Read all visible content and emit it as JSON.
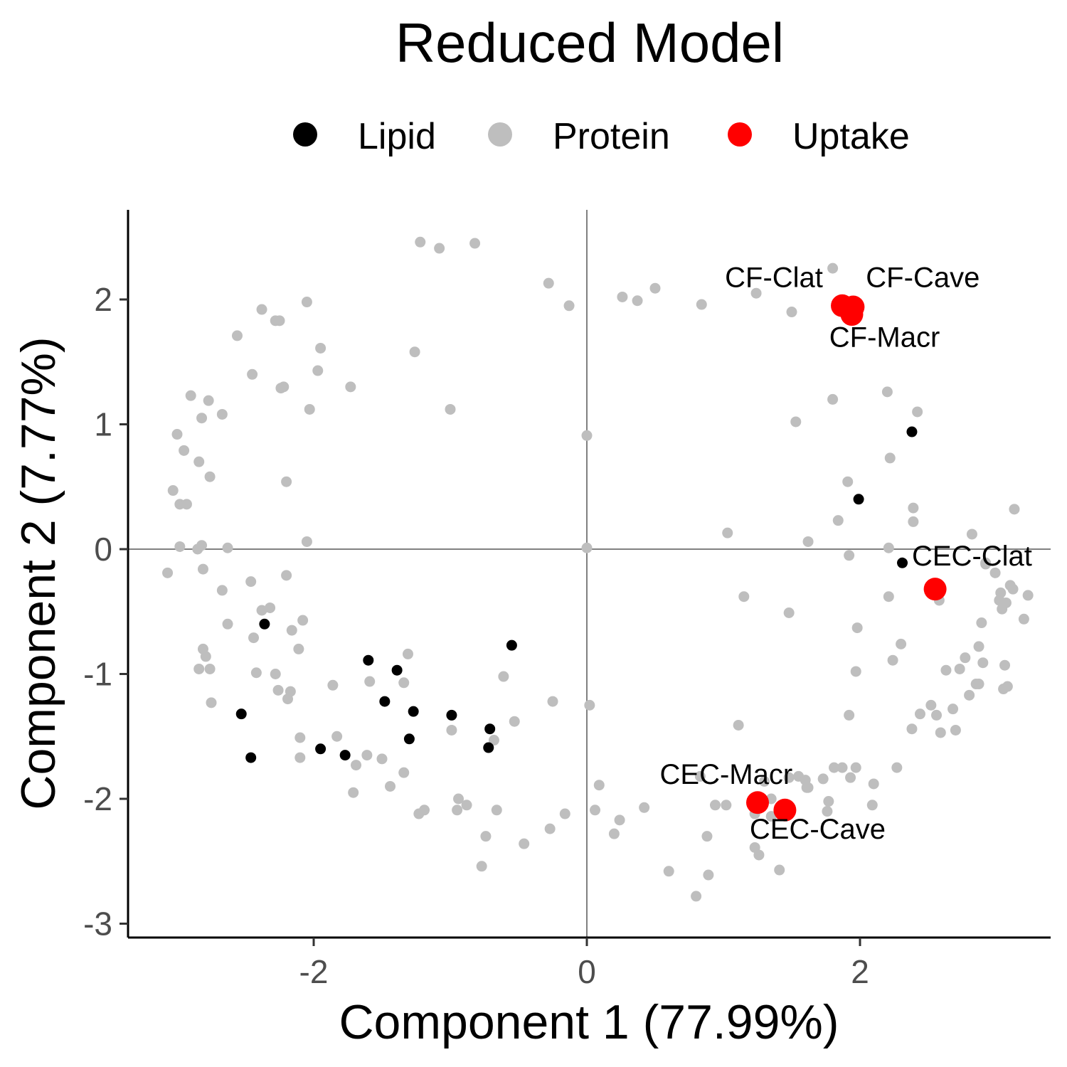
{
  "chart_data": {
    "type": "scatter",
    "title": "Reduced Model",
    "xlabel": "Component 1 (77.99%)",
    "ylabel": "Component 2 (7.77%)",
    "xlim": [
      -3.4,
      3.4
    ],
    "ylim": [
      -3.08,
      2.7
    ],
    "xticks": [
      -2,
      0,
      2
    ],
    "yticks": [
      -3,
      -2,
      -1,
      0,
      1,
      2
    ],
    "xtick_labels": [
      "-2",
      "0",
      "2"
    ],
    "ytick_labels": [
      "-3",
      "-2",
      "-1",
      "0",
      "1",
      "2"
    ],
    "grid": false,
    "reference_lines": {
      "x": 0,
      "y": 0,
      "color": "#808080"
    },
    "legend_position": "top",
    "series": [
      {
        "name": "Protein",
        "color": "#bebebe",
        "points": [
          [
            -1.22,
            2.46
          ],
          [
            -1.08,
            2.41
          ],
          [
            -0.82,
            2.45
          ],
          [
            -0.28,
            2.13
          ],
          [
            -0.13,
            1.95
          ],
          [
            0.26,
            2.02
          ],
          [
            0.37,
            1.99
          ],
          [
            0.5,
            2.09
          ],
          [
            0.84,
            1.96
          ],
          [
            1.24,
            2.05
          ],
          [
            1.5,
            1.9
          ],
          [
            1.8,
            2.25
          ],
          [
            2.2,
            1.26
          ],
          [
            2.42,
            1.1
          ],
          [
            1.8,
            1.2
          ],
          [
            1.53,
            1.02
          ],
          [
            0,
            0.91
          ],
          [
            -1.0,
            1.12
          ],
          [
            -1.26,
            1.58
          ],
          [
            -1.73,
            1.3
          ],
          [
            -1.95,
            1.61
          ],
          [
            -1.97,
            1.43
          ],
          [
            -2.05,
            1.98
          ],
          [
            -2.03,
            1.12
          ],
          [
            -2.24,
            1.29
          ],
          [
            -2.22,
            1.3
          ],
          [
            -2.38,
            1.92
          ],
          [
            -2.28,
            1.83
          ],
          [
            -2.25,
            1.83
          ],
          [
            -2.45,
            1.4
          ],
          [
            -2.56,
            1.71
          ],
          [
            -2.67,
            1.08
          ],
          [
            -2.77,
            1.19
          ],
          [
            -2.82,
            1.05
          ],
          [
            -2.9,
            1.23
          ],
          [
            -3.0,
            0.92
          ],
          [
            -2.95,
            0.79
          ],
          [
            -2.84,
            0.7
          ],
          [
            -2.76,
            0.58
          ],
          [
            -3.03,
            0.47
          ],
          [
            -2.98,
            0.36
          ],
          [
            -2.93,
            0.36
          ],
          [
            -2.2,
            0.54
          ],
          [
            -2.05,
            0.06
          ],
          [
            -2.98,
            0.02
          ],
          [
            -2.85,
            0.0
          ],
          [
            -2.82,
            0.03
          ],
          [
            -2.63,
            0.01
          ],
          [
            -3.07,
            -0.19
          ],
          [
            -2.81,
            -0.16
          ],
          [
            -2.67,
            -0.33
          ],
          [
            -2.46,
            -0.26
          ],
          [
            -2.2,
            -0.21
          ],
          [
            -2.38,
            -0.49
          ],
          [
            -2.32,
            -0.47
          ],
          [
            -2.08,
            -0.57
          ],
          [
            -2.16,
            -0.65
          ],
          [
            -2.63,
            -0.6
          ],
          [
            -2.44,
            -0.71
          ],
          [
            -2.81,
            -0.8
          ],
          [
            -2.79,
            -0.86
          ],
          [
            -2.84,
            -0.96
          ],
          [
            -2.76,
            -0.96
          ],
          [
            -2.11,
            -0.8
          ],
          [
            -2.42,
            -0.99
          ],
          [
            -2.28,
            -1.0
          ],
          [
            -2.26,
            -1.13
          ],
          [
            -2.17,
            -1.14
          ],
          [
            -2.19,
            -1.2
          ],
          [
            -2.75,
            -1.23
          ],
          [
            -1.86,
            -1.09
          ],
          [
            -1.59,
            -1.06
          ],
          [
            -1.31,
            -0.84
          ],
          [
            -1.34,
            -1.07
          ],
          [
            -0.61,
            -1.02
          ],
          [
            -0.53,
            -1.38
          ],
          [
            -0.25,
            -1.22
          ],
          [
            0.02,
            -1.25
          ],
          [
            0.09,
            -1.89
          ],
          [
            -0.99,
            -1.45
          ],
          [
            -0.68,
            -1.53
          ],
          [
            -2.1,
            -1.51
          ],
          [
            -2.1,
            -1.67
          ],
          [
            -1.83,
            -1.5
          ],
          [
            -1.69,
            -1.73
          ],
          [
            -1.61,
            -1.65
          ],
          [
            -1.5,
            -1.68
          ],
          [
            -1.34,
            -1.79
          ],
          [
            -1.71,
            -1.95
          ],
          [
            -1.44,
            -1.9
          ],
          [
            -1.23,
            -2.12
          ],
          [
            -1.19,
            -2.09
          ],
          [
            -0.94,
            -2.0
          ],
          [
            -0.95,
            -2.09
          ],
          [
            -0.88,
            -2.05
          ],
          [
            -0.66,
            -2.09
          ],
          [
            -0.74,
            -2.3
          ],
          [
            -0.77,
            -2.54
          ],
          [
            -0.46,
            -2.36
          ],
          [
            -0.27,
            -2.24
          ],
          [
            -0.16,
            -2.12
          ],
          [
            0.06,
            -2.09
          ],
          [
            0.24,
            -2.17
          ],
          [
            0.2,
            -2.28
          ],
          [
            0.42,
            -2.07
          ],
          [
            0.6,
            -2.58
          ],
          [
            0.8,
            -2.78
          ],
          [
            0.83,
            -1.82
          ],
          [
            0.94,
            -2.05
          ],
          [
            1.02,
            -2.05
          ],
          [
            0.88,
            -2.3
          ],
          [
            0.89,
            -2.61
          ],
          [
            1.11,
            -1.41
          ],
          [
            1.23,
            -2.12
          ],
          [
            1.23,
            -2.39
          ],
          [
            1.26,
            -2.45
          ],
          [
            1.3,
            -1.86
          ],
          [
            1.35,
            -2.0
          ],
          [
            1.35,
            -2.14
          ],
          [
            1.41,
            -2.57
          ],
          [
            1.48,
            -1.83
          ],
          [
            1.55,
            -1.82
          ],
          [
            1.6,
            -1.85
          ],
          [
            1.62,
            -1.91
          ],
          [
            1.73,
            -1.84
          ],
          [
            1.76,
            -2.1
          ],
          [
            1.77,
            -2.02
          ],
          [
            1.81,
            -1.75
          ],
          [
            1.87,
            -1.75
          ],
          [
            1.93,
            -1.83
          ],
          [
            1.97,
            -1.75
          ],
          [
            2.1,
            -1.88
          ],
          [
            2.09,
            -2.05
          ],
          [
            2.27,
            -1.75
          ],
          [
            1.92,
            -1.33
          ],
          [
            1.61,
            -1.91
          ],
          [
            1.03,
            0.13
          ],
          [
            1.15,
            -0.38
          ],
          [
            1.48,
            -0.51
          ],
          [
            1.62,
            0.06
          ],
          [
            1.84,
            0.23
          ],
          [
            1.91,
            0.54
          ],
          [
            1.92,
            -0.05
          ],
          [
            1.98,
            -0.63
          ],
          [
            1.97,
            -0.98
          ],
          [
            2.22,
            0.73
          ],
          [
            2.21,
            0.01
          ],
          [
            2.21,
            -0.38
          ],
          [
            2.24,
            -0.89
          ],
          [
            2.3,
            -0.76
          ],
          [
            2.39,
            0.33
          ],
          [
            2.39,
            0.22
          ],
          [
            2.38,
            -1.44
          ],
          [
            2.44,
            -1.32
          ],
          [
            2.52,
            -1.25
          ],
          [
            2.56,
            -1.33
          ],
          [
            2.59,
            -1.47
          ],
          [
            2.58,
            -0.41
          ],
          [
            2.63,
            -0.97
          ],
          [
            2.7,
            -1.45
          ],
          [
            2.68,
            -1.28
          ],
          [
            2.73,
            -0.96
          ],
          [
            2.77,
            -0.87
          ],
          [
            2.8,
            -1.17
          ],
          [
            2.82,
            0.12
          ],
          [
            2.85,
            -1.08
          ],
          [
            2.87,
            -0.78
          ],
          [
            2.87,
            -1.08
          ],
          [
            2.89,
            -0.59
          ],
          [
            2.9,
            -0.91
          ],
          [
            2.92,
            -0.12
          ],
          [
            2.99,
            -0.19
          ],
          [
            3.03,
            -0.35
          ],
          [
            3.02,
            -0.41
          ],
          [
            3.04,
            -0.48
          ],
          [
            3.07,
            -0.43
          ],
          [
            3.06,
            -0.93
          ],
          [
            3.05,
            -1.12
          ],
          [
            3.08,
            -1.1
          ],
          [
            3.12,
            -0.32
          ],
          [
            3.13,
            0.32
          ],
          [
            3.2,
            -0.56
          ],
          [
            3.23,
            -0.37
          ],
          [
            3.1,
            -0.29
          ],
          [
            2.92,
            -0.11
          ],
          [
            0,
            0.01
          ]
        ]
      },
      {
        "name": "Lipid",
        "color": "#000000",
        "points": [
          [
            2.38,
            0.94
          ],
          [
            1.99,
            0.4
          ],
          [
            2.31,
            -0.11
          ],
          [
            -2.36,
            -0.6
          ],
          [
            -0.55,
            -0.77
          ],
          [
            -1.6,
            -0.89
          ],
          [
            -1.39,
            -0.97
          ],
          [
            -1.48,
            -1.22
          ],
          [
            -1.27,
            -1.3
          ],
          [
            -0.99,
            -1.33
          ],
          [
            -2.53,
            -1.32
          ],
          [
            -0.71,
            -1.44
          ],
          [
            -1.3,
            -1.52
          ],
          [
            -1.95,
            -1.6
          ],
          [
            -1.77,
            -1.65
          ],
          [
            -0.72,
            -1.59
          ],
          [
            -2.46,
            -1.67
          ]
        ]
      },
      {
        "name": "Uptake",
        "color": "#ff0000",
        "points": [
          [
            1.87,
            1.95
          ],
          [
            1.95,
            1.94
          ],
          [
            1.94,
            1.88
          ],
          [
            2.55,
            -0.32
          ],
          [
            1.25,
            -2.03
          ],
          [
            1.45,
            -2.09
          ]
        ]
      }
    ],
    "point_labels": [
      {
        "text": "CF-Clat",
        "x": 1.37,
        "y": 2.1
      },
      {
        "text": "CF-Cave",
        "x": 2.46,
        "y": 2.1
      },
      {
        "text": "CF-Macr",
        "x": 2.18,
        "y": 1.62
      },
      {
        "text": "CEC-Clat",
        "x": 2.82,
        "y": -0.13
      },
      {
        "text": "CEC-Macr",
        "x": 1.02,
        "y": -1.88
      },
      {
        "text": "CEC-Cave",
        "x": 1.69,
        "y": -2.32
      }
    ]
  }
}
